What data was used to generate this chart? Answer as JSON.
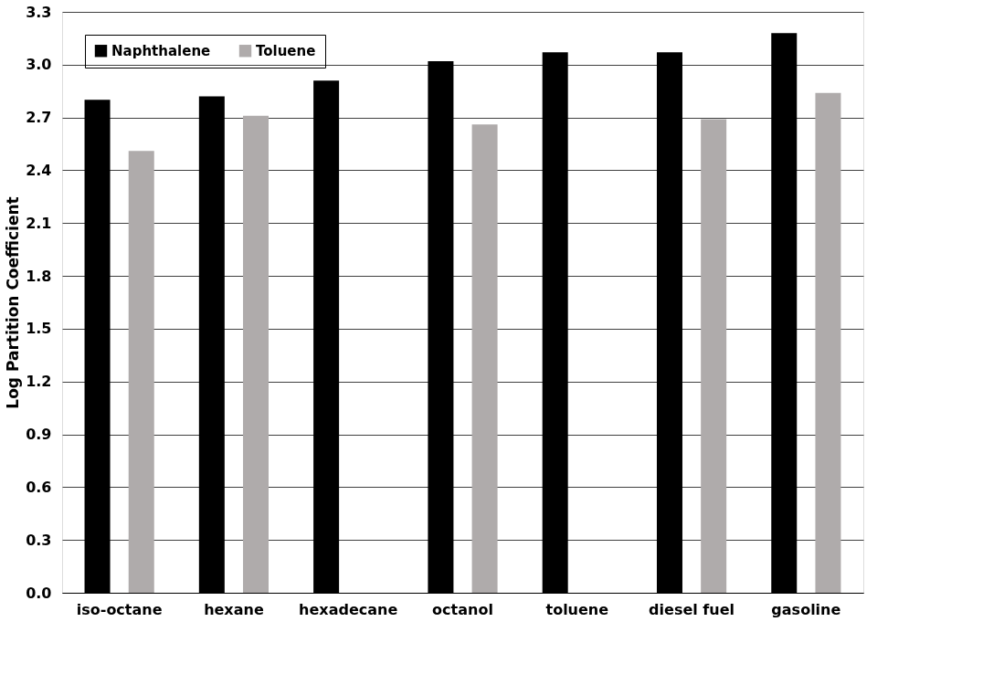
{
  "chart_data": {
    "type": "bar",
    "ylabel": "Log Partition Coefficient",
    "categories": [
      "iso-octane",
      "hexane",
      "hexadecane",
      "octanol",
      "toluene",
      "diesel fuel",
      "gasoline"
    ],
    "series": [
      {
        "name": "Naphthalene",
        "color": "#000000",
        "values": [
          2.8,
          2.82,
          2.91,
          3.02,
          3.07,
          3.07,
          3.18
        ]
      },
      {
        "name": "Toluene",
        "color": "#afabab",
        "values": [
          2.51,
          2.71,
          null,
          2.66,
          null,
          2.69,
          2.84
        ]
      }
    ],
    "ylim": [
      0,
      3.3
    ],
    "yticks": [
      {
        "value": 0,
        "label": "0.0"
      },
      0.3,
      0.6,
      0.9,
      1.2,
      1.5,
      1.8,
      2.1,
      2.4,
      2.7,
      {
        "value": 3,
        "label": "3.0"
      },
      3.3
    ],
    "grid": "y",
    "legend": "top left"
  }
}
